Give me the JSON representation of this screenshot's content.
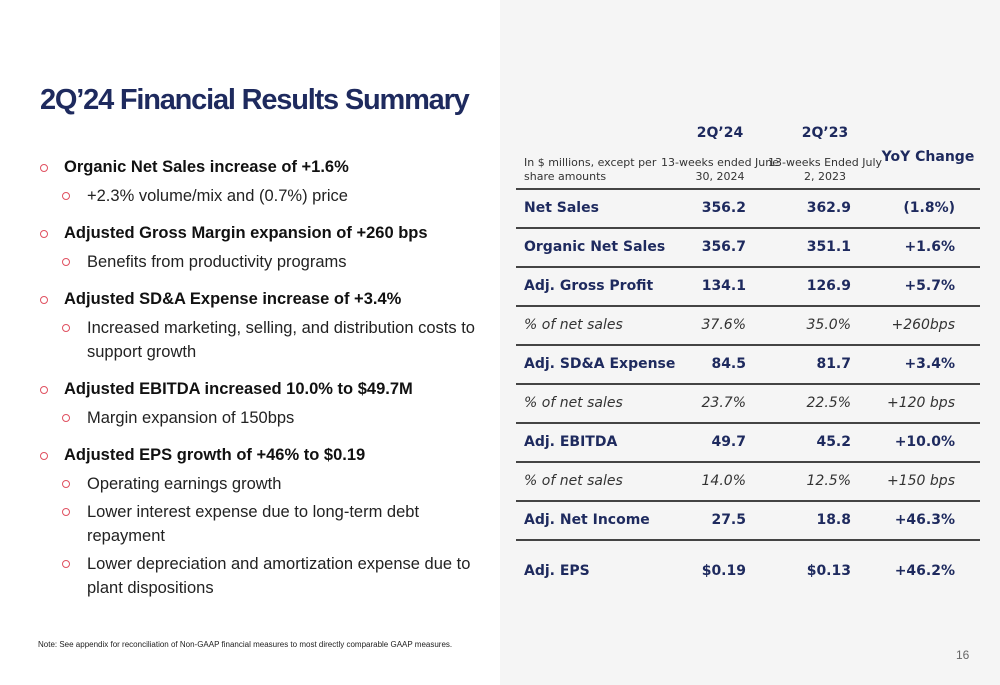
{
  "title": "2Q’24 Financial Results Summary",
  "bullets": [
    {
      "text": "Organic Net Sales increase of +1.6%",
      "subs": [
        "+2.3% volume/mix and (0.7%) price"
      ]
    },
    {
      "text": "Adjusted Gross Margin expansion of +260 bps",
      "subs": [
        "Benefits from productivity programs"
      ]
    },
    {
      "text": "Adjusted SD&A Expense increase of +3.4%",
      "subs": [
        "Increased marketing, selling, and distribution costs to support growth"
      ]
    },
    {
      "text": "Adjusted EBITDA increased 10.0% to $49.7M",
      "subs": [
        "Margin expansion of 150bps"
      ]
    },
    {
      "text": "Adjusted EPS growth of +46% to $0.19",
      "subs": [
        "Operating earnings growth",
        "Lower interest expense due to long-term debt repayment",
        "Lower depreciation and amortization expense due to plant dispositions"
      ]
    }
  ],
  "note": "Note: See appendix for reconciliation of Non-GAAP financial measures to most directly comparable GAAP measures.",
  "page_number": "16",
  "colors": {
    "title": "#1e2a5e",
    "bullet": "#e05060",
    "panel": "#f5f5f5"
  },
  "table": {
    "units": "In $ millions, except per share amounts",
    "col1": {
      "period": "2Q’24",
      "sub": "13-weeks ended June 30, 2024"
    },
    "col2": {
      "period": "2Q’23",
      "sub": "13-weeks Ended July 2, 2023"
    },
    "col3": "YoY Change",
    "rows": [
      {
        "label": "Net Sales",
        "v1": "356.2",
        "v2": "362.9",
        "chg": "(1.8%)",
        "style": "bold"
      },
      {
        "label": "Organic Net Sales",
        "v1": "356.7",
        "v2": "351.1",
        "chg": "+1.6%",
        "style": "bold"
      },
      {
        "label": "Adj. Gross Profit",
        "v1": "134.1",
        "v2": "126.9",
        "chg": "+5.7%",
        "style": "bold"
      },
      {
        "label": "% of net sales",
        "v1": "37.6%",
        "v2": "35.0%",
        "chg": "+260bps",
        "style": "ital"
      },
      {
        "label": "Adj. SD&A Expense",
        "v1": "84.5",
        "v2": "81.7",
        "chg": "+3.4%",
        "style": "bold"
      },
      {
        "label": "% of net sales",
        "v1": "23.7%",
        "v2": "22.5%",
        "chg": "+120 bps",
        "style": "ital"
      },
      {
        "label": "Adj. EBITDA",
        "v1": "49.7",
        "v2": "45.2",
        "chg": "+10.0%",
        "style": "bold"
      },
      {
        "label": "% of net sales",
        "v1": "14.0%",
        "v2": "12.5%",
        "chg": "+150 bps",
        "style": "ital"
      },
      {
        "label": "Adj. Net Income",
        "v1": "27.5",
        "v2": "18.8",
        "chg": "+46.3%",
        "style": "bold"
      },
      {
        "label": "Adj. EPS",
        "v1": "$0.19",
        "v2": "$0.13",
        "chg": "+46.2%",
        "style": "bold"
      }
    ]
  }
}
